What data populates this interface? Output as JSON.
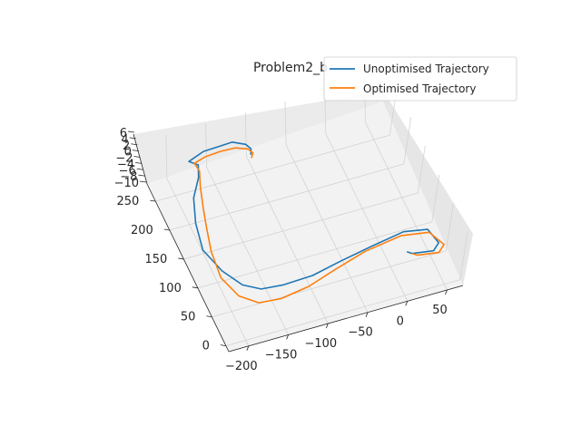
{
  "chart_data": {
    "type": "line",
    "projection": "3d",
    "title": "Problem2_b",
    "xlabel": "",
    "ylabel": "",
    "zlabel": "",
    "x_ticks": [
      "−200",
      "−150",
      "−100",
      "−50",
      "0",
      "50"
    ],
    "y_ticks": [
      "0",
      "50",
      "100",
      "150",
      "200",
      "250"
    ],
    "z_ticks": [
      "−10",
      "−8",
      "−6",
      "−4",
      "−2",
      "0",
      "2",
      "4",
      "6"
    ],
    "xlim": [
      -225,
      70
    ],
    "ylim": [
      -10,
      280
    ],
    "zlim": [
      -11,
      7
    ],
    "legend_position": "upper-right",
    "grid": true,
    "colors": {
      "unoptimised": "#1f77b4",
      "optimised": "#ff7f0e",
      "pane": "#f2f2f2",
      "grid": "#d3d3d3"
    },
    "series": [
      {
        "name": "Unoptimised Trajectory",
        "color": "#1f77b4",
        "x": [
          10,
          15,
          40,
          50,
          45,
          20,
          -20,
          -60,
          -100,
          -140,
          -170,
          -190,
          -205,
          -215,
          -210,
          -200,
          -185,
          -180,
          -190,
          -170,
          -150,
          -130,
          -115,
          -110,
          -112
        ],
        "y": [
          20,
          15,
          10,
          20,
          45,
          60,
          60,
          55,
          45,
          35,
          30,
          40,
          70,
          110,
          150,
          185,
          210,
          225,
          230,
          235,
          240,
          245,
          240,
          235,
          230
        ],
        "z": [
          0,
          0,
          0,
          0,
          0,
          -2,
          -4,
          -5,
          -5,
          -3,
          -1,
          0,
          0,
          0,
          1,
          2,
          3,
          4,
          5,
          6,
          5,
          4,
          3,
          2,
          1
        ]
      },
      {
        "name": "Optimised Trajectory",
        "color": "#ff7f0e",
        "x": [
          15,
          20,
          45,
          55,
          45,
          15,
          -30,
          -70,
          -110,
          -150,
          -180,
          -200,
          -210,
          -208,
          -200,
          -195,
          -188,
          -182,
          -185,
          -170,
          -150,
          -130,
          -115,
          -110,
          -113
        ],
        "y": [
          15,
          10,
          5,
          15,
          40,
          55,
          55,
          45,
          30,
          15,
          10,
          25,
          60,
          100,
          140,
          165,
          195,
          215,
          225,
          230,
          232,
          235,
          232,
          228,
          225
        ],
        "z": [
          0,
          0,
          0,
          0,
          0,
          -2,
          -4,
          -5,
          -5,
          -3,
          -1,
          0,
          0,
          1,
          1,
          2,
          3,
          4,
          5,
          5,
          5,
          4,
          3,
          2,
          1
        ]
      }
    ]
  }
}
